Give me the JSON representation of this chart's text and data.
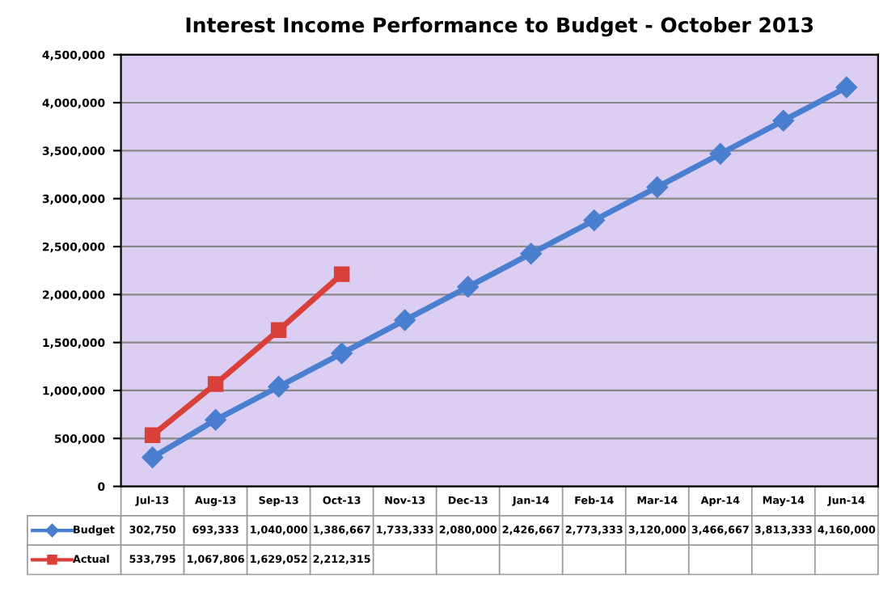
{
  "chart_data": {
    "type": "line",
    "title": "Interest Income Performance to Budget - October 2013",
    "categories": [
      "Jul-13",
      "Aug-13",
      "Sep-13",
      "Oct-13",
      "Nov-13",
      "Dec-13",
      "Jan-14",
      "Feb-14",
      "Mar-14",
      "Apr-14",
      "May-14",
      "Jun-14"
    ],
    "series": [
      {
        "name": "Budget",
        "color": "#4a7fcf",
        "marker": "diamond",
        "values": [
          302750,
          693333,
          1040000,
          1386667,
          1733333,
          2080000,
          2426667,
          2773333,
          3120000,
          3466667,
          3813333,
          4160000
        ],
        "value_labels": [
          "302,750",
          "693,333",
          "1,040,000",
          "1,386,667",
          "1,733,333",
          "2,080,000",
          "2,426,667",
          "2,773,333",
          "3,120,000",
          "3,466,667",
          "3,813,333",
          "4,160,000"
        ]
      },
      {
        "name": "Actual",
        "color": "#d9403a",
        "marker": "square",
        "values": [
          533795,
          1067806,
          1629052,
          2212315,
          null,
          null,
          null,
          null,
          null,
          null,
          null,
          null
        ],
        "value_labels": [
          "533,795",
          "1,067,806",
          "1,629,052",
          "2,212,315",
          null,
          null,
          null,
          null,
          null,
          null,
          null,
          null
        ]
      }
    ],
    "ylim": [
      0,
      4500000
    ],
    "yticks": [
      {
        "value": 0,
        "label": "0"
      },
      {
        "value": 500000,
        "label": "500,000"
      },
      {
        "value": 1000000,
        "label": "1,000,000"
      },
      {
        "value": 1500000,
        "label": "1,500,000"
      },
      {
        "value": 2000000,
        "label": "2,000,000"
      },
      {
        "value": 2500000,
        "label": "2,500,000"
      },
      {
        "value": 3000000,
        "label": "3,000,000"
      },
      {
        "value": 3500000,
        "label": "3,500,000"
      },
      {
        "value": 4000000,
        "label": "4,000,000"
      },
      {
        "value": 4500000,
        "label": "4,500,000"
      }
    ],
    "grid": "y",
    "legend": "bottom",
    "line_style": "solid"
  }
}
